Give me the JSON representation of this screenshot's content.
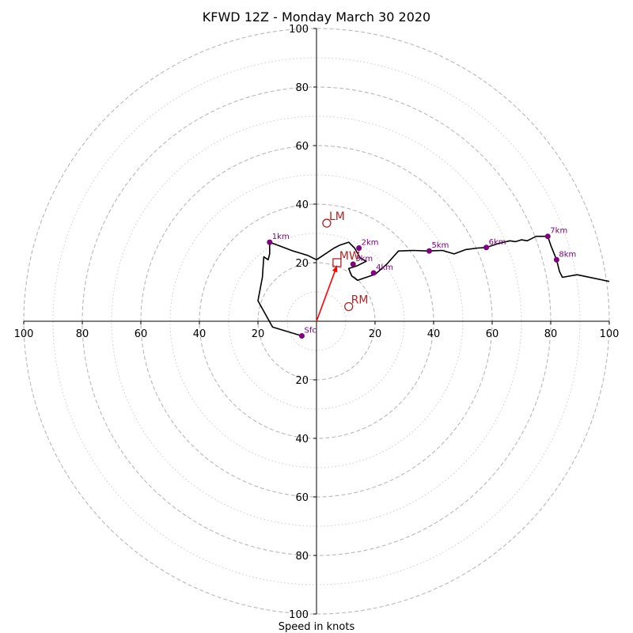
{
  "chart_data": {
    "type": "line",
    "title": "KFWD 12Z - Monday March 30 2020",
    "xlabel": "Speed in knots",
    "ylabel": "",
    "xlim": [
      -100,
      100
    ],
    "ylim": [
      -100,
      100
    ],
    "rings_major": [
      20,
      40,
      60,
      80,
      100
    ],
    "rings_minor": [
      10,
      30,
      50,
      70,
      90
    ],
    "x_ticks": [
      {
        "value": -100,
        "label": "100"
      },
      {
        "value": -80,
        "label": "80"
      },
      {
        "value": -60,
        "label": "60"
      },
      {
        "value": -40,
        "label": "40"
      },
      {
        "value": -20,
        "label": "20"
      },
      {
        "value": 20,
        "label": "20"
      },
      {
        "value": 40,
        "label": "40"
      },
      {
        "value": 60,
        "label": "60"
      },
      {
        "value": 80,
        "label": "80"
      },
      {
        "value": 100,
        "label": "100"
      }
    ],
    "y_ticks": [
      {
        "value": 100,
        "label": "100"
      },
      {
        "value": 80,
        "label": "80"
      },
      {
        "value": 60,
        "label": "60"
      },
      {
        "value": 40,
        "label": "40"
      },
      {
        "value": 20,
        "label": "20"
      },
      {
        "value": -20,
        "label": "20"
      },
      {
        "value": -40,
        "label": "40"
      },
      {
        "value": -60,
        "label": "60"
      },
      {
        "value": -80,
        "label": "80"
      },
      {
        "value": -100,
        "label": "100"
      }
    ],
    "hodograph": {
      "color": "#000000",
      "u": [
        -5,
        -15,
        -20,
        -18.5,
        -18,
        -16.5,
        -16,
        -16,
        -12,
        -8,
        -3,
        0,
        3,
        6,
        8,
        11,
        13,
        15,
        17,
        14,
        11,
        12,
        14,
        20,
        24,
        28,
        33,
        38,
        43,
        47,
        51,
        55,
        58,
        62,
        64,
        66,
        68,
        70,
        72,
        75,
        79,
        80,
        82,
        83,
        84,
        89,
        100
      ],
      "v": [
        -5,
        -2,
        7,
        15,
        22,
        21,
        23,
        27,
        25.5,
        24,
        22.5,
        21,
        23,
        25,
        26,
        27,
        25,
        21.5,
        20.5,
        19,
        18,
        15.5,
        14,
        16,
        19.5,
        24,
        24.2,
        24,
        24.2,
        23,
        24.5,
        25,
        25.2,
        26.5,
        27,
        27.5,
        27.2,
        27.8,
        27.5,
        29,
        29,
        26,
        21,
        17,
        15,
        15.9,
        13.6
      ]
    },
    "height_markers": {
      "color": "#800080",
      "points": [
        {
          "label": "Sfc",
          "u": -5,
          "v": -5
        },
        {
          "label": "1km",
          "u": -16,
          "v": 27
        },
        {
          "label": "2km",
          "u": 14.5,
          "v": 25
        },
        {
          "label": "3km",
          "u": 12.5,
          "v": 19.5
        },
        {
          "label": "4km",
          "u": 19.5,
          "v": 16.5
        },
        {
          "label": "5km",
          "u": 38.5,
          "v": 24
        },
        {
          "label": "6km",
          "u": 58,
          "v": 25.2
        },
        {
          "label": "7km",
          "u": 79,
          "v": 29
        },
        {
          "label": "8km",
          "u": 82,
          "v": 21
        }
      ]
    },
    "storm_motions": {
      "color": "#b22222",
      "points": [
        {
          "label": "LM",
          "u": 3.5,
          "v": 33.5,
          "marker": "circle"
        },
        {
          "label": "MW",
          "u": 7,
          "v": 20,
          "marker": "square"
        },
        {
          "label": "RM",
          "u": 11,
          "v": 5,
          "marker": "circle"
        }
      ]
    },
    "shear_vector": {
      "color": "#ff0000",
      "from": [
        0,
        0
      ],
      "to": [
        7,
        19
      ]
    }
  }
}
